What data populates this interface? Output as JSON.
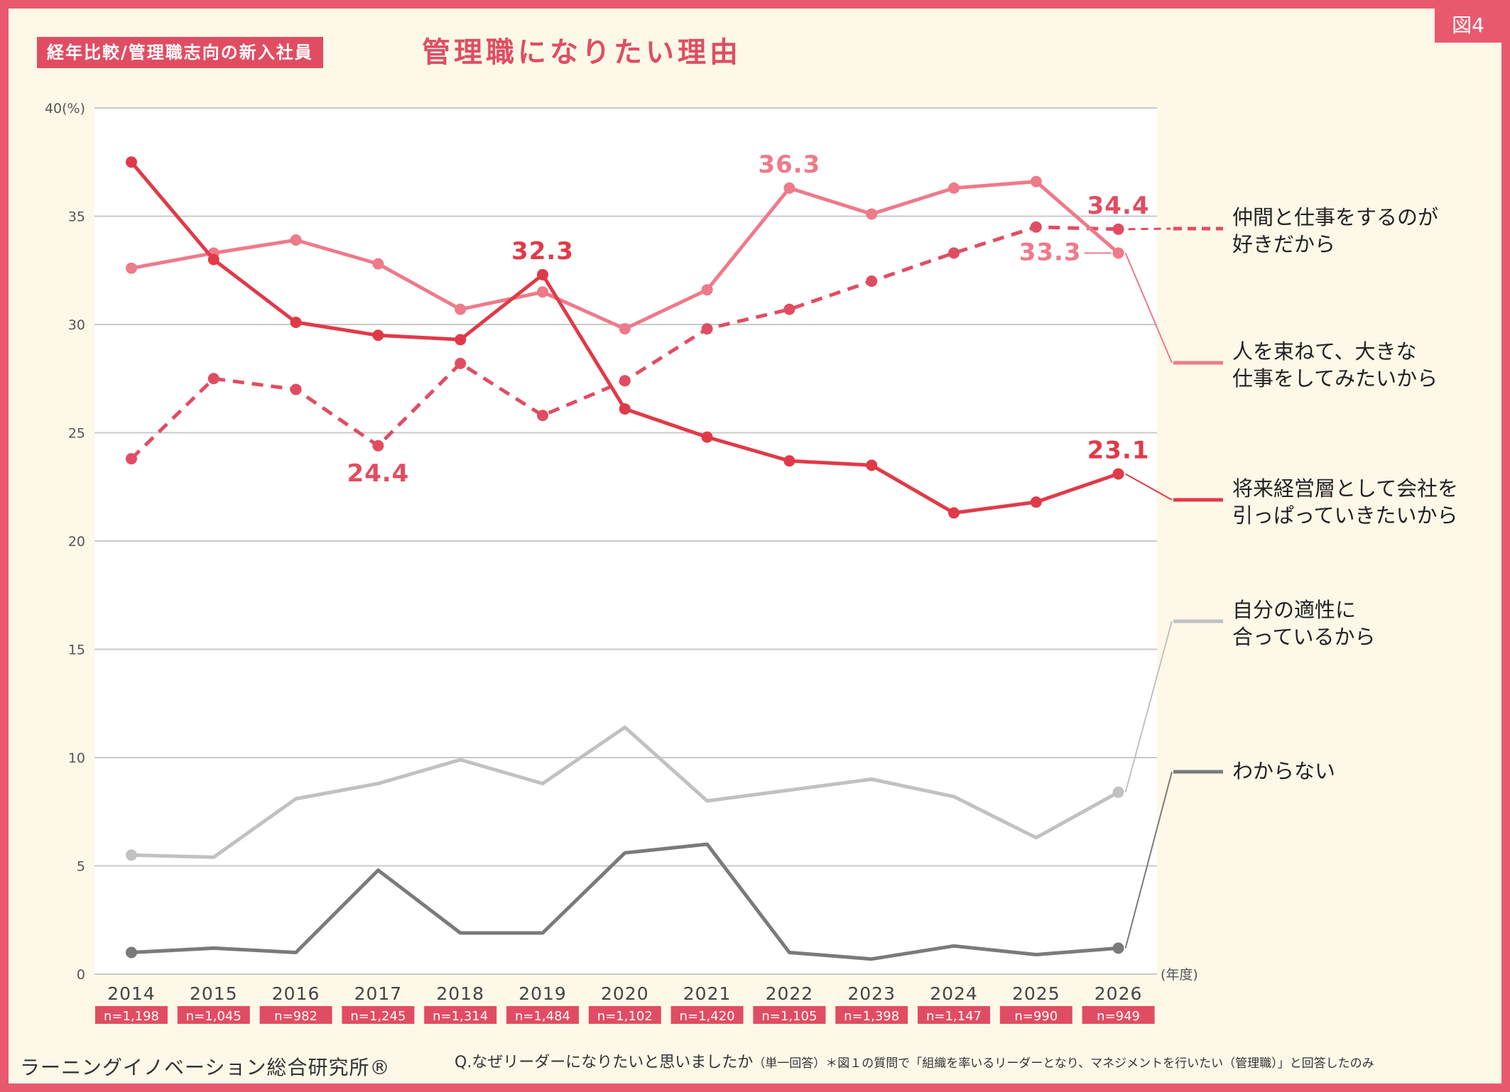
{
  "header": {
    "badge": "図4",
    "tag": "経年比較/管理職志向の新入社員",
    "title": "管理職になりたい理由"
  },
  "footer": {
    "brand": "ラーニングイノベーション総合研究所®",
    "question": "Q.なぜリーダーになりたいと思いましたか",
    "note": "（単一回答）＊図１の質問で「組織を率いるリーダーとなり、マネジメントを行いたい（管理職）」と回答したのみ"
  },
  "chart_data": {
    "type": "line",
    "categories": [
      "2014",
      "2015",
      "2016",
      "2017",
      "2018",
      "2019",
      "2020",
      "2021",
      "2022",
      "2023",
      "2024",
      "2025",
      "2026"
    ],
    "sample_sizes": [
      "n=1,198",
      "n=1,045",
      "n=982",
      "n=1,245",
      "n=1,314",
      "n=1,484",
      "n=1,102",
      "n=1,420",
      "n=1,105",
      "n=1,398",
      "n=1,147",
      "n=990",
      "n=949"
    ],
    "xlabel": "(年度)",
    "ylim": [
      0,
      40
    ],
    "yticks": [
      0,
      5,
      10,
      15,
      20,
      25,
      30,
      35
    ],
    "ytop_label": "40(%)",
    "grid": true,
    "series": [
      {
        "name": "仲間と仕事をするのが好きだから",
        "legend_lines": [
          "仲間と仕事をするのが",
          "好きだから"
        ],
        "color": "#e04d62",
        "dashed": true,
        "markers": true,
        "values": [
          23.8,
          27.5,
          27.0,
          24.4,
          28.2,
          25.8,
          27.4,
          29.8,
          30.7,
          32.0,
          33.3,
          34.5,
          34.4
        ],
        "labels": [
          {
            "index": 3,
            "text": "24.4"
          },
          {
            "index": 12,
            "text": "34.4"
          }
        ]
      },
      {
        "name": "人を束ねて、大きな仕事をしてみたいから",
        "legend_lines": [
          "人を束ねて、大きな",
          "仕事をしてみたいから"
        ],
        "color": "#ee7a8a",
        "dashed": false,
        "markers": true,
        "values": [
          32.6,
          33.3,
          33.9,
          32.8,
          30.7,
          31.5,
          29.8,
          31.6,
          36.3,
          35.1,
          36.3,
          36.6,
          33.3
        ],
        "labels": [
          {
            "index": 8,
            "text": "36.3"
          },
          {
            "index": 12,
            "text": "33.3"
          }
        ]
      },
      {
        "name": "将来経営層として会社を引っぱっていきたいから",
        "legend_lines": [
          "将来経営層として会社を",
          "引っぱっていきたいから"
        ],
        "color": "#e03a48",
        "dashed": false,
        "markers": true,
        "values": [
          37.5,
          33.0,
          30.1,
          29.5,
          29.3,
          32.3,
          26.1,
          24.8,
          23.7,
          23.5,
          21.3,
          21.8,
          23.1
        ],
        "labels": [
          {
            "index": 5,
            "text": "32.3"
          },
          {
            "index": 12,
            "text": "23.1"
          }
        ]
      },
      {
        "name": "自分の適性に合っているから",
        "legend_lines": [
          "自分の適性に",
          "合っているから"
        ],
        "color": "#c1c1c1",
        "dashed": false,
        "markers": false,
        "values": [
          5.5,
          5.4,
          8.1,
          8.8,
          9.9,
          8.8,
          11.4,
          8.0,
          8.5,
          9.0,
          8.2,
          6.3,
          8.4
        ],
        "labels": []
      },
      {
        "name": "わからない",
        "legend_lines": [
          "わからない"
        ],
        "color": "#7a7a7a",
        "dashed": false,
        "markers": false,
        "values": [
          1.0,
          1.2,
          1.0,
          4.8,
          1.9,
          1.9,
          5.6,
          6.0,
          1.0,
          0.7,
          1.3,
          0.9,
          1.2
        ],
        "labels": []
      }
    ]
  }
}
